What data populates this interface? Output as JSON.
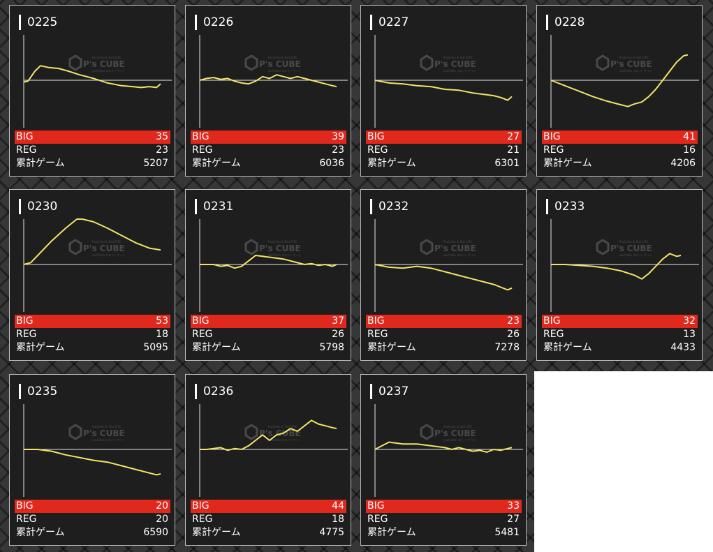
{
  "labels": {
    "big": "BIG",
    "reg": "REG",
    "total": "累計ゲーム"
  },
  "watermark": {
    "brand": "P's CUBE",
    "top": "Pachinko & Slot SITE",
    "bottom": "pachinko スロットサイト"
  },
  "colors": {
    "line": "#f2e36a",
    "big_row": "#e0281d",
    "card_bg": "#1e1e1e"
  },
  "machines": [
    {
      "id": "0225",
      "big": "35",
      "reg": "23",
      "games": "5207",
      "graph": [
        [
          0,
          0.1
        ],
        [
          0.03,
          0.05
        ],
        [
          0.08,
          -0.5
        ],
        [
          0.12,
          -0.8
        ],
        [
          0.18,
          -0.7
        ],
        [
          0.25,
          -0.65
        ],
        [
          0.32,
          -0.5
        ],
        [
          0.4,
          -0.3
        ],
        [
          0.5,
          -0.1
        ],
        [
          0.6,
          0.15
        ],
        [
          0.7,
          0.3
        ],
        [
          0.78,
          0.35
        ],
        [
          0.84,
          0.4
        ],
        [
          0.9,
          0.35
        ],
        [
          0.95,
          0.4
        ],
        [
          0.98,
          0.2
        ]
      ]
    },
    {
      "id": "0226",
      "big": "39",
      "reg": "23",
      "games": "6036",
      "graph": [
        [
          0,
          0
        ],
        [
          0.05,
          -0.1
        ],
        [
          0.1,
          -0.15
        ],
        [
          0.15,
          -0.05
        ],
        [
          0.2,
          -0.1
        ],
        [
          0.25,
          0.05
        ],
        [
          0.3,
          0.15
        ],
        [
          0.35,
          0.2
        ],
        [
          0.4,
          0.05
        ],
        [
          0.45,
          -0.2
        ],
        [
          0.5,
          -0.1
        ],
        [
          0.55,
          -0.3
        ],
        [
          0.6,
          -0.2
        ],
        [
          0.65,
          -0.1
        ],
        [
          0.7,
          -0.2
        ],
        [
          0.75,
          -0.1
        ],
        [
          0.8,
          0
        ],
        [
          0.85,
          0.1
        ],
        [
          0.9,
          0.2
        ],
        [
          0.95,
          0.3
        ],
        [
          0.98,
          0.35
        ]
      ]
    },
    {
      "id": "0227",
      "big": "27",
      "reg": "21",
      "games": "6301",
      "graph": [
        [
          0,
          0
        ],
        [
          0.1,
          0.15
        ],
        [
          0.2,
          0.2
        ],
        [
          0.3,
          0.3
        ],
        [
          0.4,
          0.35
        ],
        [
          0.5,
          0.5
        ],
        [
          0.6,
          0.55
        ],
        [
          0.7,
          0.7
        ],
        [
          0.8,
          0.8
        ],
        [
          0.85,
          0.85
        ],
        [
          0.9,
          0.95
        ],
        [
          0.95,
          1.1
        ],
        [
          0.98,
          0.9
        ]
      ]
    },
    {
      "id": "0228",
      "big": "41",
      "reg": "16",
      "games": "4206",
      "graph": [
        [
          0,
          0
        ],
        [
          0.1,
          0.3
        ],
        [
          0.2,
          0.6
        ],
        [
          0.3,
          0.9
        ],
        [
          0.4,
          1.15
        ],
        [
          0.5,
          1.35
        ],
        [
          0.55,
          1.45
        ],
        [
          0.6,
          1.3
        ],
        [
          0.65,
          1.2
        ],
        [
          0.7,
          0.9
        ],
        [
          0.75,
          0.5
        ],
        [
          0.8,
          0
        ],
        [
          0.85,
          -0.5
        ],
        [
          0.9,
          -1.0
        ],
        [
          0.95,
          -1.35
        ],
        [
          0.98,
          -1.4
        ]
      ]
    },
    {
      "id": "0230",
      "big": "53",
      "reg": "18",
      "games": "5095",
      "graph": [
        [
          0,
          0
        ],
        [
          0.05,
          -0.1
        ],
        [
          0.1,
          -0.5
        ],
        [
          0.2,
          -1.3
        ],
        [
          0.3,
          -2.0
        ],
        [
          0.38,
          -2.5
        ],
        [
          0.42,
          -2.5
        ],
        [
          0.5,
          -2.35
        ],
        [
          0.6,
          -2.0
        ],
        [
          0.7,
          -1.6
        ],
        [
          0.8,
          -1.2
        ],
        [
          0.9,
          -0.9
        ],
        [
          0.98,
          -0.8
        ]
      ]
    },
    {
      "id": "0231",
      "big": "37",
      "reg": "26",
      "games": "5798",
      "graph": [
        [
          0,
          0
        ],
        [
          0.1,
          0
        ],
        [
          0.15,
          0.1
        ],
        [
          0.2,
          0.05
        ],
        [
          0.25,
          0.2
        ],
        [
          0.3,
          0.1
        ],
        [
          0.35,
          -0.2
        ],
        [
          0.4,
          -0.5
        ],
        [
          0.45,
          -0.45
        ],
        [
          0.5,
          -0.4
        ],
        [
          0.55,
          -0.35
        ],
        [
          0.6,
          -0.3
        ],
        [
          0.65,
          -0.2
        ],
        [
          0.7,
          -0.1
        ],
        [
          0.75,
          0
        ],
        [
          0.8,
          -0.05
        ],
        [
          0.85,
          0.05
        ],
        [
          0.9,
          0
        ],
        [
          0.95,
          0.1
        ],
        [
          0.98,
          0
        ]
      ]
    },
    {
      "id": "0232",
      "big": "23",
      "reg": "26",
      "games": "7278",
      "graph": [
        [
          0,
          0
        ],
        [
          0.1,
          0.15
        ],
        [
          0.2,
          0.2
        ],
        [
          0.3,
          0.1
        ],
        [
          0.4,
          0.2
        ],
        [
          0.5,
          0.4
        ],
        [
          0.6,
          0.6
        ],
        [
          0.7,
          0.8
        ],
        [
          0.8,
          1.0
        ],
        [
          0.85,
          1.1
        ],
        [
          0.9,
          1.25
        ],
        [
          0.95,
          1.4
        ],
        [
          0.98,
          1.3
        ]
      ]
    },
    {
      "id": "0233",
      "big": "32",
      "reg": "13",
      "games": "4433",
      "graph": [
        [
          0,
          0
        ],
        [
          0.1,
          0
        ],
        [
          0.2,
          0.05
        ],
        [
          0.3,
          0.1
        ],
        [
          0.4,
          0.2
        ],
        [
          0.5,
          0.35
        ],
        [
          0.6,
          0.6
        ],
        [
          0.65,
          0.8
        ],
        [
          0.7,
          0.5
        ],
        [
          0.75,
          0.1
        ],
        [
          0.8,
          -0.3
        ],
        [
          0.85,
          -0.6
        ],
        [
          0.9,
          -0.45
        ],
        [
          0.93,
          -0.5
        ]
      ]
    },
    {
      "id": "0235",
      "big": "20",
      "reg": "20",
      "games": "6590",
      "graph": [
        [
          0,
          0
        ],
        [
          0.1,
          0
        ],
        [
          0.2,
          0.1
        ],
        [
          0.3,
          0.3
        ],
        [
          0.4,
          0.45
        ],
        [
          0.5,
          0.6
        ],
        [
          0.6,
          0.7
        ],
        [
          0.7,
          0.9
        ],
        [
          0.8,
          1.1
        ],
        [
          0.9,
          1.3
        ],
        [
          0.95,
          1.4
        ],
        [
          0.98,
          1.35
        ]
      ]
    },
    {
      "id": "0236",
      "big": "44",
      "reg": "18",
      "games": "4775",
      "graph": [
        [
          0,
          0
        ],
        [
          0.05,
          0
        ],
        [
          0.1,
          -0.05
        ],
        [
          0.15,
          -0.1
        ],
        [
          0.2,
          0.05
        ],
        [
          0.25,
          -0.05
        ],
        [
          0.3,
          0
        ],
        [
          0.35,
          -0.2
        ],
        [
          0.4,
          -0.5
        ],
        [
          0.45,
          -0.8
        ],
        [
          0.5,
          -0.5
        ],
        [
          0.55,
          -0.8
        ],
        [
          0.6,
          -0.9
        ],
        [
          0.65,
          -1.15
        ],
        [
          0.7,
          -1.0
        ],
        [
          0.75,
          -1.3
        ],
        [
          0.8,
          -1.6
        ],
        [
          0.85,
          -1.4
        ],
        [
          0.9,
          -1.3
        ],
        [
          0.95,
          -1.2
        ],
        [
          0.98,
          -1.15
        ]
      ]
    },
    {
      "id": "0237",
      "big": "33",
      "reg": "27",
      "games": "5481",
      "graph": [
        [
          0,
          0
        ],
        [
          0.05,
          -0.2
        ],
        [
          0.1,
          -0.4
        ],
        [
          0.15,
          -0.35
        ],
        [
          0.2,
          -0.3
        ],
        [
          0.3,
          -0.3
        ],
        [
          0.4,
          -0.2
        ],
        [
          0.5,
          -0.1
        ],
        [
          0.55,
          0
        ],
        [
          0.6,
          -0.1
        ],
        [
          0.65,
          0
        ],
        [
          0.7,
          0.1
        ],
        [
          0.75,
          0.05
        ],
        [
          0.8,
          0.15
        ],
        [
          0.85,
          0
        ],
        [
          0.9,
          0.05
        ],
        [
          0.95,
          -0.05
        ],
        [
          0.98,
          -0.1
        ]
      ]
    }
  ]
}
